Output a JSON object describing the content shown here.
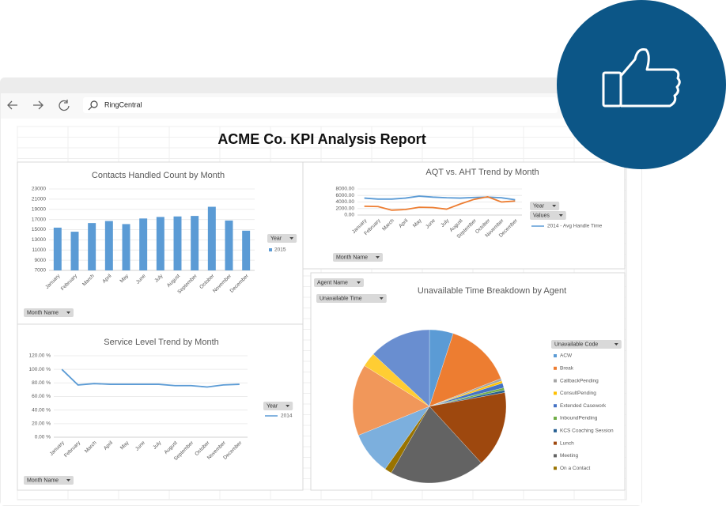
{
  "browser": {
    "address": "RingCentral"
  },
  "report_title": "ACME Co. KPI Analysis Report",
  "chart_data": [
    {
      "type": "bar",
      "title": "Contacts Handled Count by Month",
      "categories": [
        "January",
        "February",
        "March",
        "April",
        "May",
        "June",
        "July",
        "August",
        "September",
        "October",
        "November",
        "December"
      ],
      "series": [
        {
          "name": "2015",
          "color": "#5b9bd5",
          "values": [
            15400,
            14600,
            16300,
            16700,
            16100,
            17200,
            17500,
            17600,
            17700,
            19500,
            16800,
            14800
          ]
        }
      ],
      "ylim": [
        7000,
        23000
      ],
      "yticks": [
        23000,
        21000,
        19000,
        17000,
        15000,
        13000,
        11000,
        9000,
        7000
      ],
      "grid": true,
      "buttons": [
        "Year",
        "Month Name"
      ]
    },
    {
      "type": "line",
      "title": "AQT vs. AHT Trend by Month",
      "categories": [
        "January",
        "February",
        "March",
        "April",
        "May",
        "June",
        "July",
        "August",
        "September",
        "October",
        "November",
        "December"
      ],
      "series": [
        {
          "name": "2014 - Avg Handle Time",
          "color": "#5b9bd5",
          "values": [
            5200,
            4900,
            4900,
            5200,
            5800,
            5500,
            5300,
            5200,
            5400,
            5500,
            5300,
            4700
          ]
        },
        {
          "color": "#ed7d31",
          "values": [
            2700,
            2600,
            1500,
            1700,
            2400,
            2300,
            1800,
            3400,
            4800,
            5600,
            4000,
            4300
          ]
        }
      ],
      "ylim": [
        0,
        8000
      ],
      "yticks": [
        {
          "value": 8000,
          "label": "8000.00"
        },
        {
          "value": 6000,
          "label": "6000.00"
        },
        {
          "value": 4000,
          "label": "4000.00"
        },
        {
          "value": 2000,
          "label": "2000.00"
        },
        {
          "value": 0,
          "label": "0.00"
        }
      ],
      "grid": true,
      "buttons": [
        "Year",
        "Values",
        "Month Name"
      ]
    },
    {
      "type": "line",
      "title": "Service Level Trend by Month",
      "categories": [
        "January",
        "February",
        "March",
        "April",
        "May",
        "June",
        "July",
        "August",
        "September",
        "October",
        "November",
        "December"
      ],
      "series": [
        {
          "name": "2014",
          "color": "#5b9bd5",
          "values": [
            100,
            77,
            79,
            78,
            78,
            78,
            78,
            76,
            76,
            74,
            77,
            78
          ]
        }
      ],
      "ylim": [
        0,
        120
      ],
      "yticks": [
        {
          "value": 120,
          "label": "120.00 %"
        },
        {
          "value": 100,
          "label": "100.00 %"
        },
        {
          "value": 80,
          "label": "80.00 %"
        },
        {
          "value": 60,
          "label": "60.00 %"
        },
        {
          "value": 40,
          "label": "40.00 %"
        },
        {
          "value": 20,
          "label": "20.00 %"
        },
        {
          "value": 0,
          "label": "0.00 %"
        }
      ],
      "grid": true,
      "buttons": [
        "Year",
        "Month Name"
      ]
    },
    {
      "type": "pie",
      "title": "Unavailable Time Breakdown by Agent",
      "categories": [
        "ACW",
        "Break",
        "CallbackPending",
        "ConsultPending",
        "Extended Casework",
        "InboundPending",
        "KCS Coaching Session",
        "Lunch",
        "Meeting",
        "On a Contact",
        null,
        null,
        null,
        null
      ],
      "values": [
        5,
        14,
        0.5,
        0.5,
        1,
        0.5,
        0.5,
        16,
        20,
        1.5,
        9,
        15,
        3,
        13
      ],
      "colors": [
        "#5b9bd5",
        "#ed7d31",
        "#a5a5a5",
        "#ffc000",
        "#4472c4",
        "#70ad47",
        "#255e91",
        "#9e480e",
        "#636363",
        "#997300",
        "#7cafdd",
        "#f1975a",
        "#ffcd33",
        "#698ed0"
      ],
      "buttons": [
        "Agent Name",
        "Unavailable Time",
        "Unavailable Code"
      ]
    }
  ]
}
